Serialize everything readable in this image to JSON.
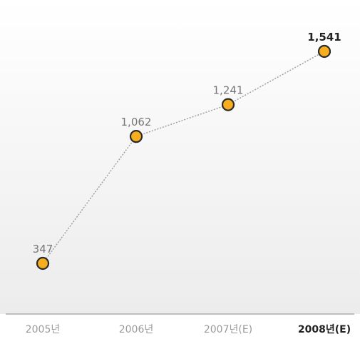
{
  "chart_data": {
    "type": "line",
    "categories": [
      "2005년",
      "2006년",
      "2007년(E)",
      "2008년(E)"
    ],
    "values": [
      347,
      1062,
      1241,
      1541
    ],
    "value_labels": [
      "347",
      "1,062",
      "1,241",
      "1,541"
    ],
    "highlight_index": 3,
    "xlabel": "",
    "ylabel": "",
    "title": "",
    "grid": false,
    "legend": "none"
  },
  "colors": {
    "marker_fill": "#F6AE1E",
    "marker_stroke": "#2b2b2b",
    "line": "#9a9a9a",
    "axis": "#8a8a8a",
    "bg_top": "#ffffff",
    "bg_bottom": "#ececec"
  }
}
